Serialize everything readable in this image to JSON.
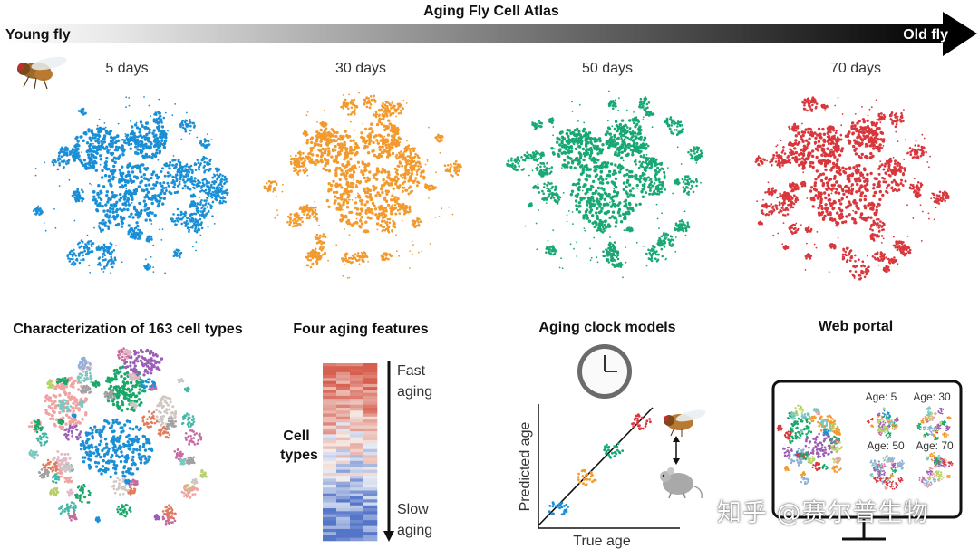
{
  "header": {
    "title": "Aging Fly Cell Atlas",
    "young_label": "Young fly",
    "old_label": "Old fly"
  },
  "timepoints": [
    {
      "label": "5 days",
      "color": "#1a8fd6"
    },
    {
      "label": "30 days",
      "color": "#f29a2e"
    },
    {
      "label": "50 days",
      "color": "#19a874"
    },
    {
      "label": "70 days",
      "color": "#d9373c"
    }
  ],
  "panels": {
    "cell_types": {
      "title": "Characterization of 163 cell types"
    },
    "features": {
      "title": "Four aging features",
      "y_label_line1": "Cell",
      "y_label_line2": "types",
      "fast_line1": "Fast",
      "fast_line2": "aging",
      "slow_line1": "Slow",
      "slow_line2": "aging"
    },
    "clock": {
      "title": "Aging clock models",
      "xlabel": "True age",
      "ylabel": "Predicted age"
    },
    "portal": {
      "title": "Web portal",
      "ages": [
        "Age: 5",
        "Age: 30",
        "Age: 50",
        "Age: 70"
      ]
    }
  },
  "watermark": {
    "text": "知乎 @赛尔普生物"
  },
  "icons": {
    "fly": "fly-icon",
    "clock": "clock-icon",
    "mouse": "mouse-icon",
    "monitor": "monitor-icon"
  }
}
